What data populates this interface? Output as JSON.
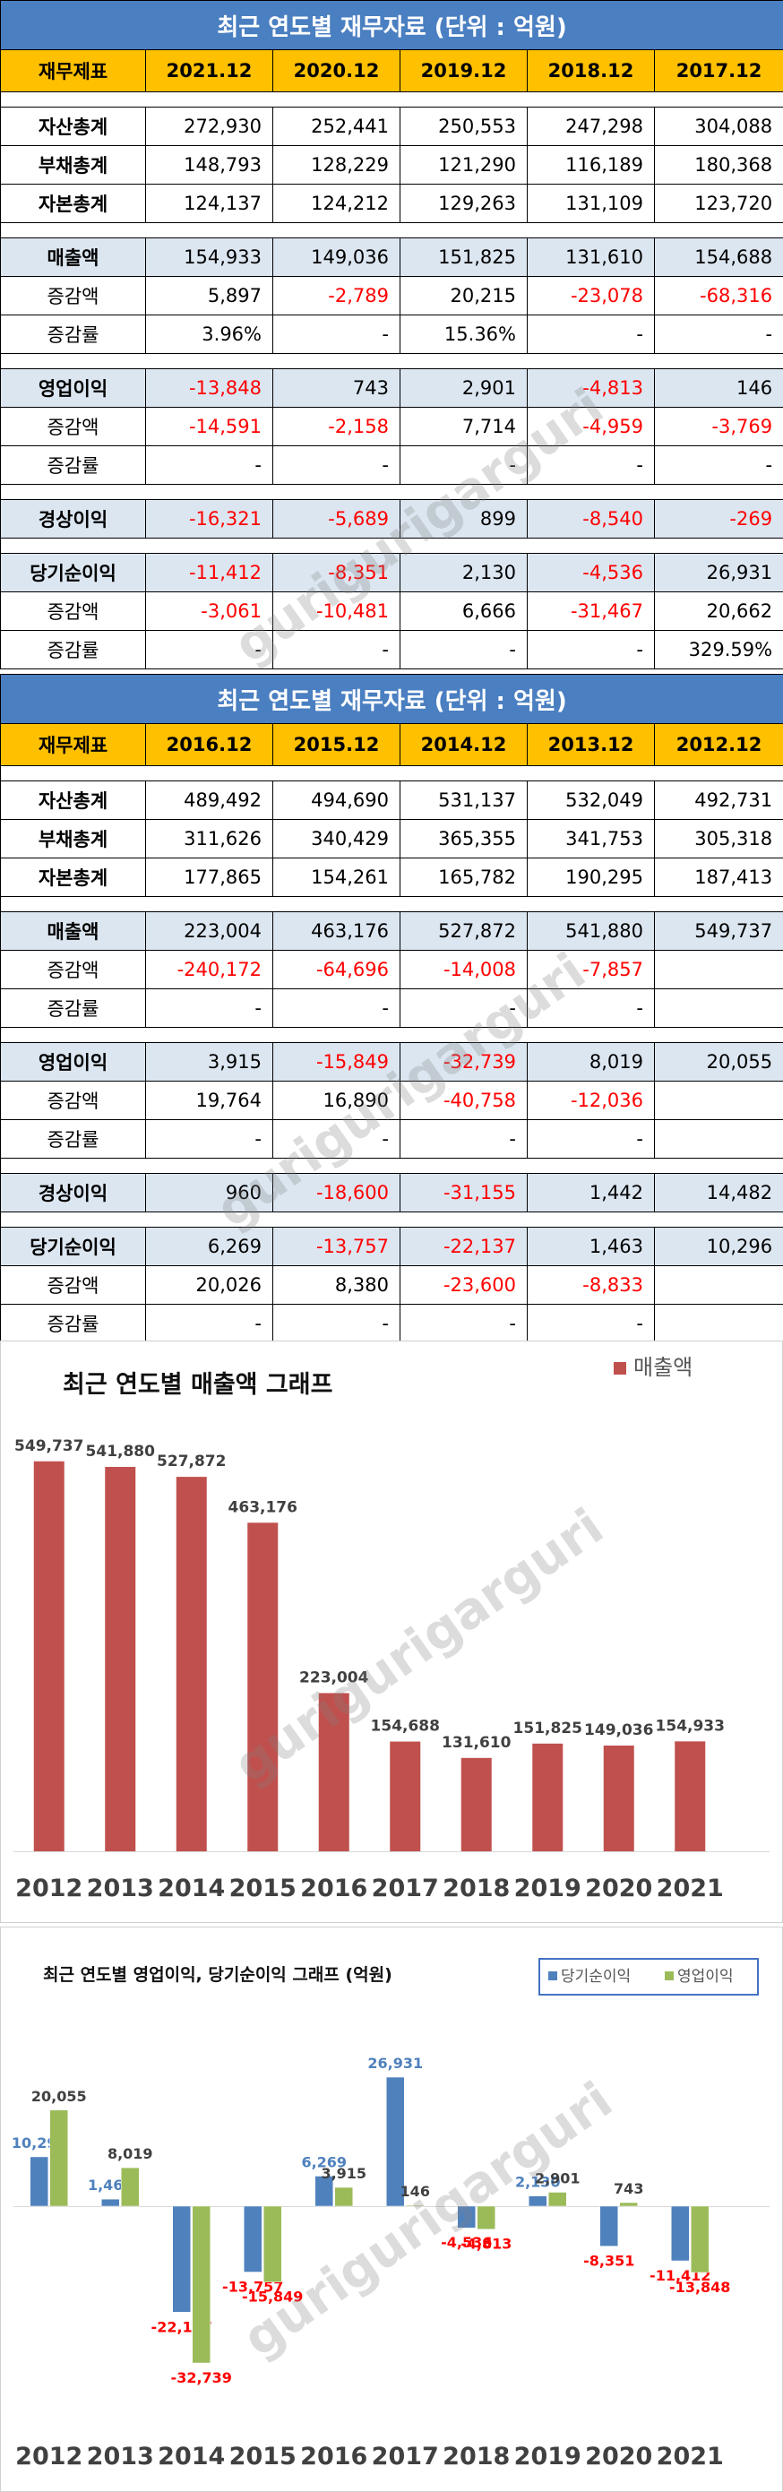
{
  "watermark": "gurigurigarguri",
  "tables": [
    {
      "title": "최근 연도별 재무자료 (단위 : 억원)",
      "header": [
        "재무제표",
        "2021.12",
        "2020.12",
        "2019.12",
        "2018.12",
        "2017.12"
      ],
      "groups": [
        [
          {
            "label": "자산총계",
            "style": "plain",
            "cells": [
              "272,930",
              "252,441",
              "250,553",
              "247,298",
              "304,088"
            ]
          },
          {
            "label": "부채총계",
            "style": "plain",
            "cells": [
              "148,793",
              "128,229",
              "121,290",
              "116,189",
              "180,368"
            ]
          },
          {
            "label": "자본총계",
            "style": "plain",
            "cells": [
              "124,137",
              "124,212",
              "129,263",
              "131,109",
              "123,720"
            ]
          }
        ],
        [
          {
            "label": "매출액",
            "style": "main",
            "cells": [
              "154,933",
              "149,036",
              "151,825",
              "131,610",
              "154,688"
            ]
          },
          {
            "label": "증감액",
            "style": "sub",
            "cells": [
              "5,897",
              "-2,789",
              "20,215",
              "-23,078",
              "-68,316"
            ]
          },
          {
            "label": "증감률",
            "style": "sub",
            "cells": [
              "3.96%",
              "-",
              "15.36%",
              "-",
              "-"
            ]
          }
        ],
        [
          {
            "label": "영업이익",
            "style": "main",
            "cells": [
              "-13,848",
              "743",
              "2,901",
              "-4,813",
              "146"
            ]
          },
          {
            "label": "증감액",
            "style": "sub",
            "cells": [
              "-14,591",
              "-2,158",
              "7,714",
              "-4,959",
              "-3,769"
            ]
          },
          {
            "label": "증감률",
            "style": "sub",
            "cells": [
              "-",
              "-",
              "-",
              "-",
              "-"
            ]
          }
        ],
        [
          {
            "label": "경상이익",
            "style": "main",
            "cells": [
              "-16,321",
              "-5,689",
              "899",
              "-8,540",
              "-269"
            ]
          }
        ],
        [
          {
            "label": "당기순이익",
            "style": "main",
            "cells": [
              "-11,412",
              "-8,351",
              "2,130",
              "-4,536",
              "26,931"
            ]
          },
          {
            "label": "증감액",
            "style": "sub",
            "cells": [
              "-3,061",
              "-10,481",
              "6,666",
              "-31,467",
              "20,662"
            ]
          },
          {
            "label": "증감률",
            "style": "sub",
            "cells": [
              "-",
              "-",
              "-",
              "-",
              "329.59%"
            ]
          }
        ]
      ]
    },
    {
      "title": "최근 연도별 재무자료 (단위 : 억원)",
      "header": [
        "재무제표",
        "2016.12",
        "2015.12",
        "2014.12",
        "2013.12",
        "2012.12"
      ],
      "groups": [
        [
          {
            "label": "자산총계",
            "style": "plain",
            "cells": [
              "489,492",
              "494,690",
              "531,137",
              "532,049",
              "492,731"
            ]
          },
          {
            "label": "부채총계",
            "style": "plain",
            "cells": [
              "311,626",
              "340,429",
              "365,355",
              "341,753",
              "305,318"
            ]
          },
          {
            "label": "자본총계",
            "style": "plain",
            "cells": [
              "177,865",
              "154,261",
              "165,782",
              "190,295",
              "187,413"
            ]
          }
        ],
        [
          {
            "label": "매출액",
            "style": "main",
            "cells": [
              "223,004",
              "463,176",
              "527,872",
              "541,880",
              "549,737"
            ]
          },
          {
            "label": "증감액",
            "style": "sub",
            "cells": [
              "-240,172",
              "-64,696",
              "-14,008",
              "-7,857",
              ""
            ]
          },
          {
            "label": "증감률",
            "style": "sub",
            "cells": [
              "-",
              "-",
              "-",
              "-",
              ""
            ]
          }
        ],
        [
          {
            "label": "영업이익",
            "style": "main",
            "cells": [
              "3,915",
              "-15,849",
              "-32,739",
              "8,019",
              "20,055"
            ]
          },
          {
            "label": "증감액",
            "style": "sub",
            "cells": [
              "19,764",
              "16,890",
              "-40,758",
              "-12,036",
              ""
            ]
          },
          {
            "label": "증감률",
            "style": "sub",
            "cells": [
              "-",
              "-",
              "-",
              "-",
              ""
            ]
          }
        ],
        [
          {
            "label": "경상이익",
            "style": "main",
            "cells": [
              "960",
              "-18,600",
              "-31,155",
              "1,442",
              "14,482"
            ]
          }
        ],
        [
          {
            "label": "당기순이익",
            "style": "main",
            "cells": [
              "6,269",
              "-13,757",
              "-22,137",
              "1,463",
              "10,296"
            ]
          },
          {
            "label": "증감액",
            "style": "sub",
            "cells": [
              "20,026",
              "8,380",
              "-23,600",
              "-8,833",
              ""
            ]
          },
          {
            "label": "증감률",
            "style": "sub",
            "cells": [
              "-",
              "-",
              "-",
              "-",
              ""
            ]
          }
        ]
      ]
    }
  ],
  "chart_data": [
    {
      "type": "bar",
      "title": "최근 연도별 매출액 그래프",
      "categories": [
        "2012",
        "2013",
        "2014",
        "2015",
        "2016",
        "2017",
        "2018",
        "2019",
        "2020",
        "2021"
      ],
      "series": [
        {
          "name": "매출액",
          "color": "#c0504d",
          "values": [
            549737,
            541880,
            527872,
            463176,
            223004,
            154688,
            131610,
            151825,
            149036,
            154933
          ]
        }
      ],
      "ylim": [
        0,
        600000
      ],
      "grid": false,
      "legend": "top-right"
    },
    {
      "type": "bar",
      "title": "최근 연도별 영업이익, 당기순이익 그래프 (억원)",
      "categories": [
        "2012",
        "2013",
        "2014",
        "2015",
        "2016",
        "2017",
        "2018",
        "2019",
        "2020",
        "2021"
      ],
      "series": [
        {
          "name": "당기순이익",
          "color": "#4f81bd",
          "values": [
            10296,
            1463,
            -22137,
            -13757,
            6269,
            26931,
            -4536,
            2130,
            -8351,
            -11412
          ]
        },
        {
          "name": "영업이익",
          "color": "#9bbb59",
          "values": [
            20055,
            8019,
            -32739,
            -15849,
            3915,
            146,
            -4813,
            2901,
            743,
            -13848
          ]
        }
      ],
      "ylim": [
        -40000,
        32000
      ],
      "grid": false,
      "legend": "top-right"
    }
  ]
}
